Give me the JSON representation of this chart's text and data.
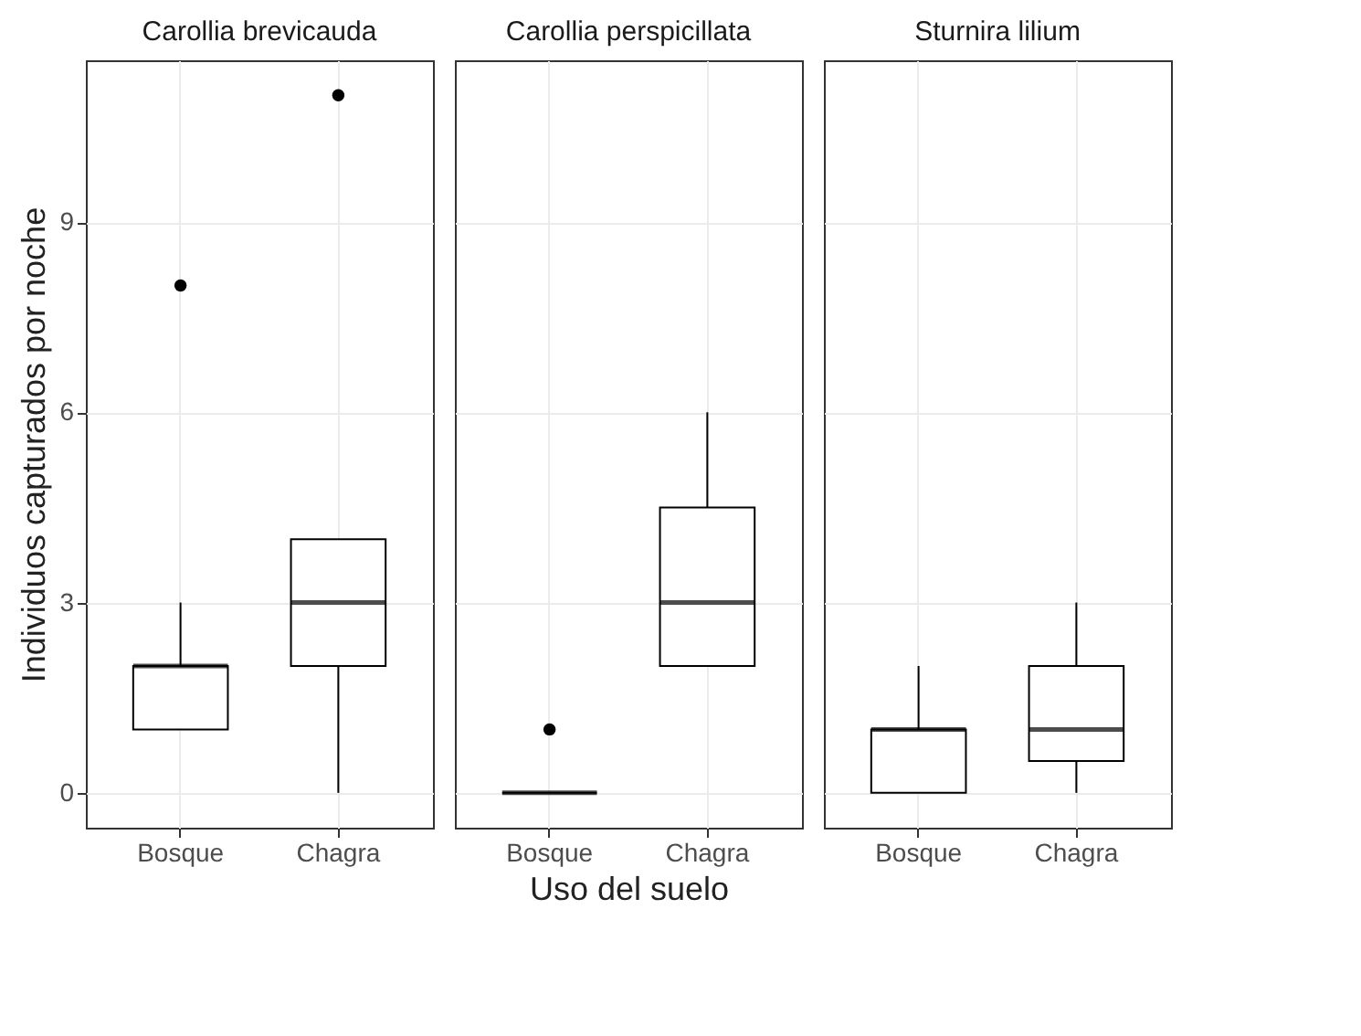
{
  "chart_data": [
    {
      "type": "box",
      "title": "Carollia brevicauda",
      "ylabel": "Individuos capturados por noche",
      "categories": [
        "Bosque",
        "Chagra"
      ],
      "ylim": [
        -0.55,
        11.55
      ],
      "yticks": [
        0,
        3,
        6,
        9
      ],
      "grid": true,
      "boxes": [
        {
          "low": 1,
          "q1": 1,
          "median": 2,
          "q3": 2,
          "high": 3,
          "outliers": [
            8
          ]
        },
        {
          "low": 0,
          "q1": 2,
          "median": 3,
          "q3": 4,
          "high": 4,
          "outliers": [
            11
          ]
        }
      ]
    },
    {
      "type": "box",
      "title": "Carollia perspicillata",
      "xlabel": "Uso del suelo",
      "categories": [
        "Bosque",
        "Chagra"
      ],
      "ylim": [
        -0.55,
        11.55
      ],
      "yticks": [
        0,
        3,
        6,
        9
      ],
      "grid": true,
      "tick_labels": "x",
      "boxes": [
        {
          "low": 0,
          "q1": 0,
          "median": 0,
          "q3": 0,
          "high": 0,
          "outliers": [
            1
          ]
        },
        {
          "low": 2,
          "q1": 2,
          "median": 3,
          "q3": 4.5,
          "high": 6
        }
      ]
    },
    {
      "type": "box",
      "title": "Sturnira lilium",
      "categories": [
        "Bosque",
        "Chagra"
      ],
      "ylim": [
        -0.55,
        11.55
      ],
      "yticks": [
        0,
        3,
        6,
        9
      ],
      "grid": true,
      "tick_labels": "x",
      "boxes": [
        {
          "low": 0,
          "q1": 0,
          "median": 1,
          "q3": 1,
          "high": 2
        },
        {
          "low": 0,
          "q1": 0.5,
          "median": 1,
          "q3": 2,
          "high": 3
        }
      ]
    }
  ]
}
